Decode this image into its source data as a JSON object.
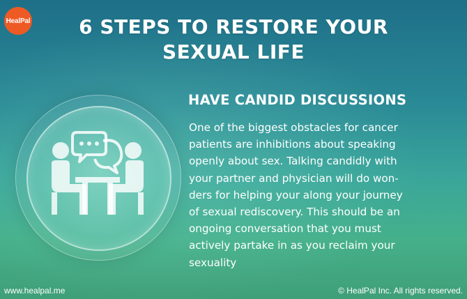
{
  "brand": {
    "logo_text": "HealPal",
    "logo_color": "#ee5a24"
  },
  "title": {
    "line1": "6 STEPS TO RESTORE YOUR",
    "line2": "SEXUAL LIFE"
  },
  "illustration": {
    "icon": "two-people-talking-at-table-icon"
  },
  "section": {
    "heading": "HAVE CANDID DISCUSSIONS",
    "body_lines": [
      "One of the biggest obstacles for cancer",
      "patients are inhibitions about speaking",
      "openly about sex. Talking candidly with",
      "your partner and physician will do won-",
      "ders for helping your along your journey",
      "of sexual rediscovery. This should be an",
      "ongoing conversation that you must",
      "actively partake in as you reclaim your",
      "sexuality"
    ]
  },
  "footer": {
    "website": "www.healpal.me",
    "copyright": "© HealPal Inc. All rights reserved."
  }
}
